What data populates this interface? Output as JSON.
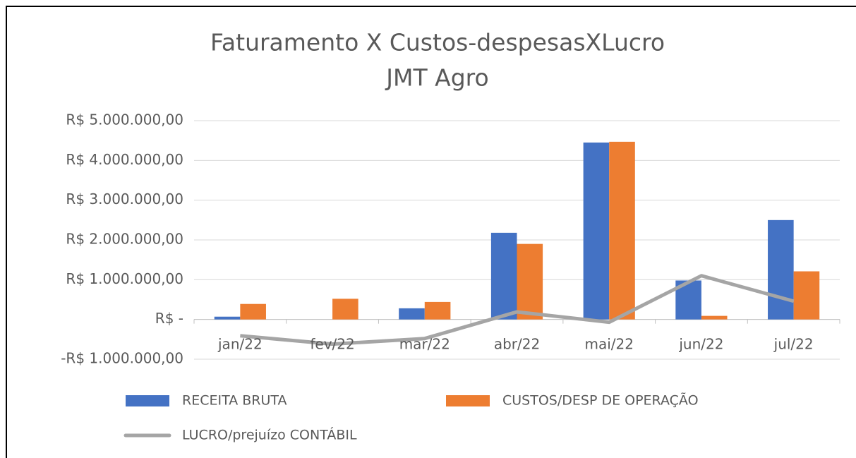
{
  "chart_data": {
    "type": "bar",
    "title": [
      "Faturamento X Custos-despesasXLucro",
      "JMT Agro"
    ],
    "categories": [
      "jan/22",
      "fev/22",
      "mar/22",
      "abr/22",
      "mai/22",
      "jun/22",
      "jul/22"
    ],
    "series": [
      {
        "name": "RECEITA BRUTA",
        "color": "#4472c4",
        "type": "bar",
        "values": [
          70000,
          0,
          280000,
          2180000,
          4450000,
          980000,
          2500000
        ]
      },
      {
        "name": "CUSTOS/DESP DE OPERAÇÃO",
        "color": "#ed7d31",
        "type": "bar",
        "values": [
          390000,
          520000,
          440000,
          1900000,
          4470000,
          90000,
          1210000
        ]
      },
      {
        "name": "LUCRO/prejuízo CONTÁBIL",
        "color": "#a5a5a5",
        "type": "line",
        "values": [
          -410000,
          -620000,
          -480000,
          190000,
          -70000,
          1100000,
          460000
        ]
      }
    ],
    "ylim": [
      -1000000,
      5000000
    ],
    "yticks": [
      {
        "value": -1000000,
        "label": "-R$ 1.000.000,00"
      },
      {
        "value": 0,
        "label": "R$ -"
      },
      {
        "value": 1000000,
        "label": "R$ 1.000.000,00"
      },
      {
        "value": 2000000,
        "label": "R$ 2.000.000,00"
      },
      {
        "value": 3000000,
        "label": "R$ 3.000.000,00"
      },
      {
        "value": 4000000,
        "label": "R$ 4.000.000,00"
      },
      {
        "value": 5000000,
        "label": "R$ 5.000.000,00"
      }
    ],
    "grid": true,
    "legend": "bottom"
  }
}
